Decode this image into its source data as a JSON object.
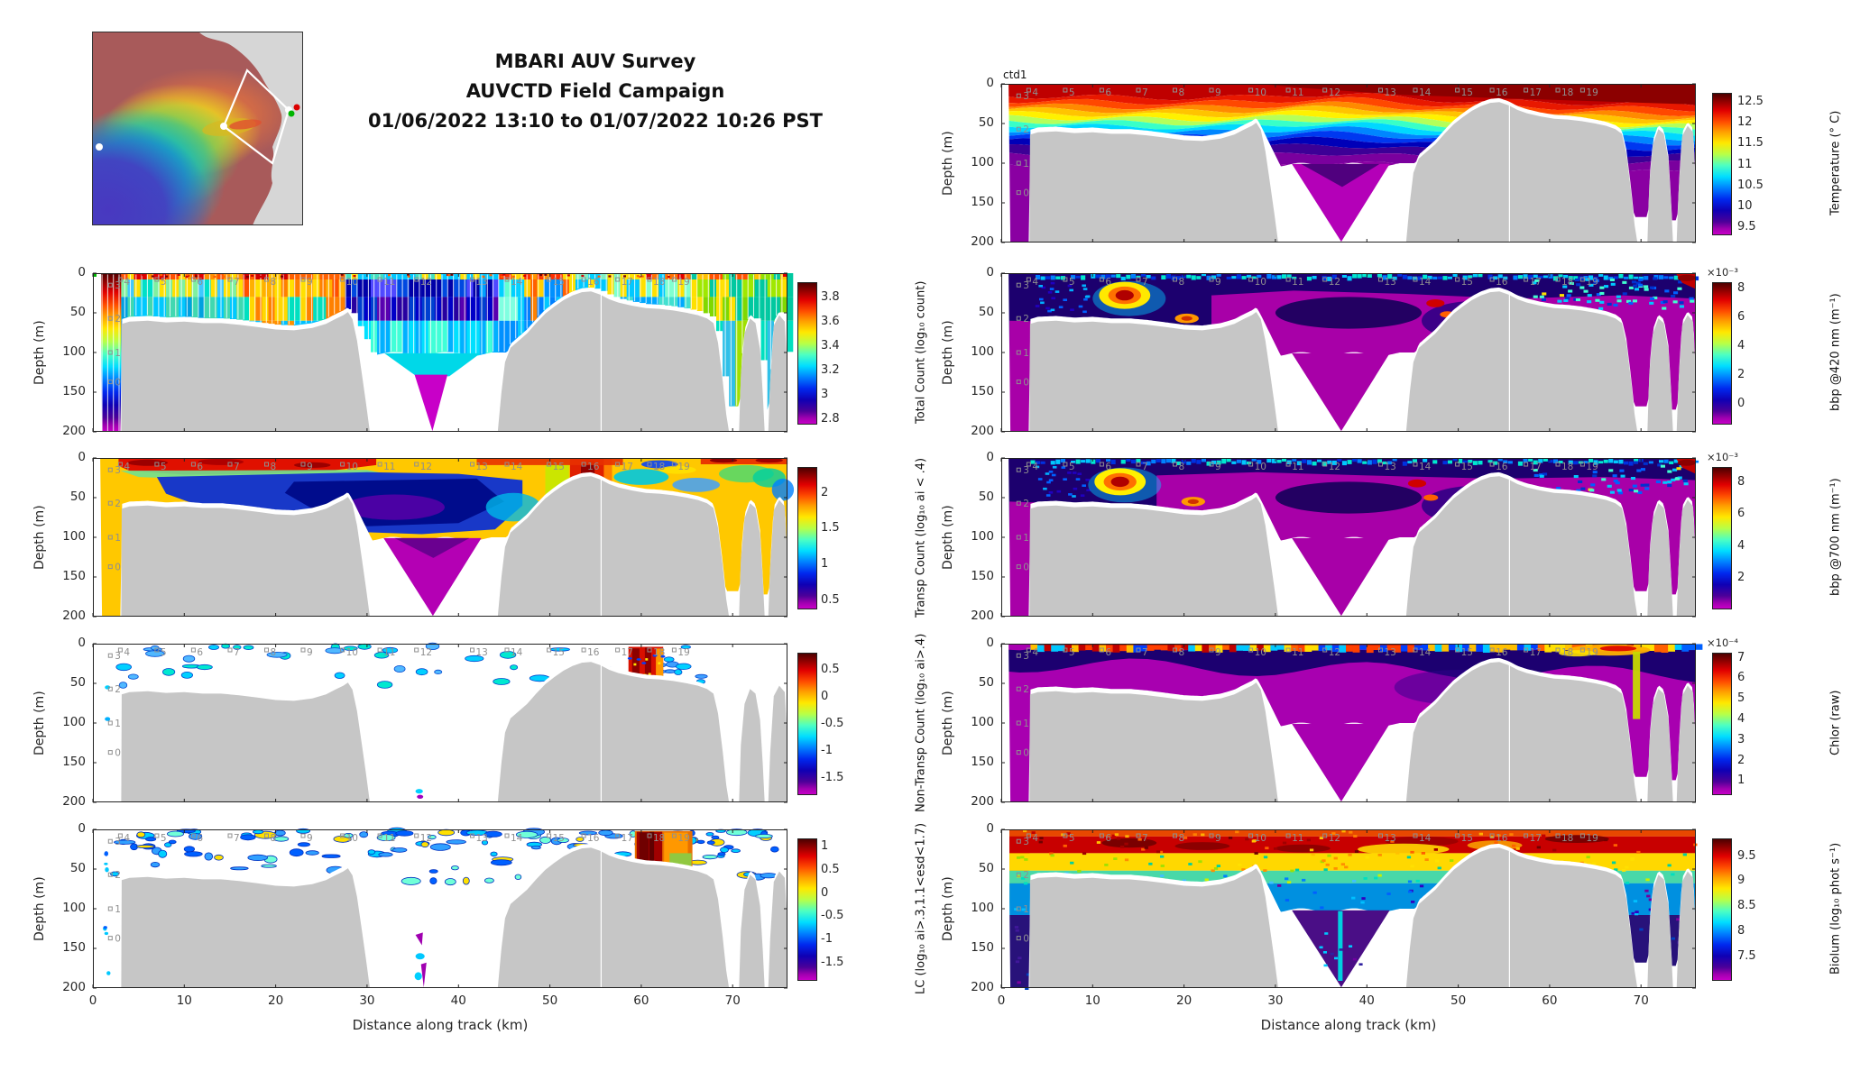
{
  "title": {
    "line1": "MBARI AUV Survey",
    "line2": "AUVCTD Field Campaign",
    "line3": "01/06/2022 13:10 to 01/07/2022 10:26 PST"
  },
  "map_inset": {
    "type": "bathymetry-overview-map",
    "survey_track": "white diamond outline",
    "start_marker_color": "#00b400",
    "end_marker_color": "#dc0000",
    "waypoint_dot_color": "#ffffff"
  },
  "axes": {
    "xlabel": "Distance along track (km)",
    "x_ticks": [
      "0",
      "10",
      "20",
      "30",
      "40",
      "50",
      "60",
      "70"
    ],
    "x_range_km": [
      0,
      76
    ],
    "ylabel": "Depth (m)",
    "y_ticks": [
      "0",
      "50",
      "100",
      "150",
      "200"
    ],
    "depth_range_m": [
      0,
      200
    ]
  },
  "waypoints": {
    "marker_color": "#8f8f8f",
    "top": [
      {
        "label": "4",
        "km": 3
      },
      {
        "label": "5",
        "km": 7
      },
      {
        "label": "6",
        "km": 11
      },
      {
        "label": "7",
        "km": 15
      },
      {
        "label": "8",
        "km": 19
      },
      {
        "label": "9",
        "km": 23
      },
      {
        "label": "10",
        "km": 27.3
      },
      {
        "label": "11",
        "km": 31.4
      },
      {
        "label": "12",
        "km": 35.4
      },
      {
        "label": "13",
        "km": 41.5
      },
      {
        "label": "14",
        "km": 45.3
      },
      {
        "label": "15",
        "km": 49.9
      },
      {
        "label": "16",
        "km": 53.7
      },
      {
        "label": "17",
        "km": 57.4
      },
      {
        "label": "18",
        "km": 60.9
      },
      {
        "label": "19",
        "km": 63.6
      }
    ],
    "left": [
      {
        "label": "3",
        "depth_m": 15
      },
      {
        "label": "2",
        "depth_m": 57
      },
      {
        "label": "1",
        "depth_m": 100
      },
      {
        "label": "0",
        "depth_m": 137
      }
    ]
  },
  "chart_data": [
    {
      "id": "total-count",
      "type": "heatmap",
      "position": {
        "column": "left",
        "row": 1
      },
      "colorbar": {
        "label": "Total Count (log₁₀ count)",
        "ticks": [
          "3.8",
          "3.6",
          "3.4",
          "3.2",
          "3",
          "2.8"
        ],
        "min": 2.77,
        "max": 3.93,
        "colormap": "jet"
      }
    },
    {
      "id": "transp-count",
      "type": "heatmap",
      "position": {
        "column": "left",
        "row": 2
      },
      "colorbar": {
        "label": "Transp Count (log₁₀ ai < .4)",
        "ticks": [
          "2",
          "1.5",
          "1",
          "0.5"
        ],
        "min": 0.4,
        "max": 2.36,
        "colormap": "jet"
      }
    },
    {
      "id": "non-transp-count",
      "type": "heatmap",
      "position": {
        "column": "left",
        "row": 3
      },
      "colorbar": {
        "label": "Non-Transp Count (log₁₀ ai>.4)",
        "ticks": [
          "0.5",
          "0",
          "-0.5",
          "-1",
          "-1.5"
        ],
        "min": -1.78,
        "max": 0.82,
        "colormap": "jet"
      }
    },
    {
      "id": "lc",
      "type": "heatmap",
      "position": {
        "column": "left",
        "row": 4
      },
      "colorbar": {
        "label": "LC (log₁₀ ai>.3,1.1<esd<1.7)",
        "ticks": [
          "1",
          "0.5",
          "0",
          "-0.5",
          "-1",
          "-1.5"
        ],
        "min": -1.85,
        "max": 1.18,
        "colormap": "jet"
      }
    },
    {
      "id": "temperature",
      "type": "heatmap",
      "position": {
        "column": "right",
        "row": 0
      },
      "corner_label": "ctd1",
      "colorbar": {
        "label": "Temperature (° C)",
        "ticks": [
          "12.5",
          "12",
          "11.5",
          "11",
          "10.5",
          "10",
          "9.5"
        ],
        "min": 9.35,
        "max": 12.72,
        "colormap": "jet"
      }
    },
    {
      "id": "bbp420",
      "type": "heatmap",
      "position": {
        "column": "right",
        "row": 1
      },
      "colorbar": {
        "label": "bbp @420 nm (m⁻¹)",
        "exponent": "×10⁻³",
        "ticks": [
          "8",
          "6",
          "4",
          "2",
          "0"
        ],
        "min": -1.3,
        "max": 8.45,
        "colormap": "jet"
      }
    },
    {
      "id": "bbp700",
      "type": "heatmap",
      "position": {
        "column": "right",
        "row": 2
      },
      "colorbar": {
        "label": "bbp @700 nm (m⁻¹)",
        "exponent": "×10⁻³",
        "ticks": [
          "8",
          "6",
          "4",
          "2"
        ],
        "min": 0.15,
        "max": 8.95,
        "colormap": "jet"
      }
    },
    {
      "id": "chlor",
      "type": "heatmap",
      "position": {
        "column": "right",
        "row": 3
      },
      "colorbar": {
        "label": "Chlor (raw)",
        "exponent": "×10⁻⁴",
        "ticks": [
          "7",
          "6",
          "5",
          "4",
          "3",
          "2",
          "1"
        ],
        "min": 0.4,
        "max": 7.25,
        "colormap": "jet"
      }
    },
    {
      "id": "biolum",
      "type": "heatmap",
      "position": {
        "column": "right",
        "row": 4
      },
      "colorbar": {
        "label": "Biolum (log₁₀ phot s⁻¹)",
        "ticks": [
          "9.5",
          "9",
          "8.5",
          "8",
          "7.5"
        ],
        "min": 7.05,
        "max": 9.85,
        "colormap": "jet"
      }
    }
  ],
  "colors": {
    "seafloor_grey": "#c6c6c6",
    "axis": "#262626",
    "waypoint_grey": "#8f8f8f"
  }
}
